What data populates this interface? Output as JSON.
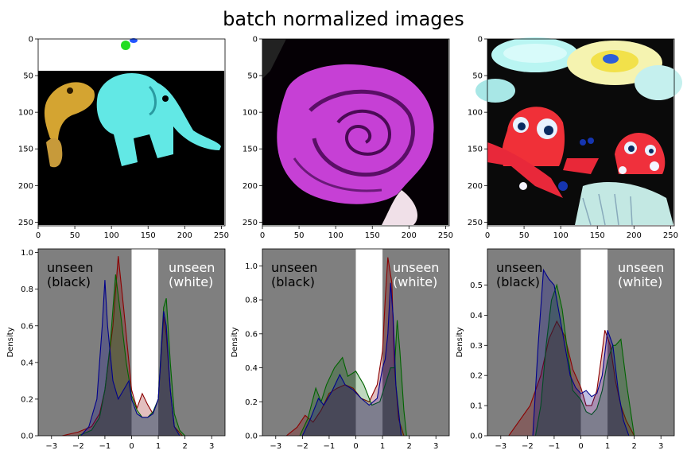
{
  "title": "batch normalized images",
  "chart_data": [
    {
      "type": "image",
      "subject": "blue-green plush elephant and yellow toy on black background",
      "xlim": [
        0,
        255
      ],
      "ylim": [
        255,
        0
      ],
      "xticks": [
        0,
        50,
        100,
        150,
        200,
        250
      ],
      "yticks": [
        0,
        50,
        100,
        150,
        200,
        250
      ]
    },
    {
      "type": "image",
      "subject": "magenta rose on black background",
      "xlim": [
        0,
        255
      ],
      "ylim": [
        255,
        0
      ],
      "xticks": [
        0,
        50,
        100,
        150,
        200,
        250
      ],
      "yticks": [
        0,
        50,
        100,
        150,
        200,
        250
      ]
    },
    {
      "type": "image",
      "subject": "red octopus toys in front of colourful spinning tops",
      "xlim": [
        0,
        255
      ],
      "ylim": [
        255,
        0
      ],
      "xticks": [
        0,
        50,
        100,
        150,
        200,
        250
      ],
      "yticks": [
        0,
        50,
        100,
        150,
        200,
        250
      ]
    },
    {
      "type": "area",
      "ylabel": "Density",
      "xlim": [
        -3.5,
        3.5
      ],
      "ylim": [
        0,
        1.02
      ],
      "xticks": [
        -3,
        -2,
        -1,
        0,
        1,
        2,
        3
      ],
      "yticks": [
        0.0,
        0.2,
        0.4,
        0.6,
        0.8,
        1.0
      ],
      "shaded_regions": [
        {
          "range": [
            -3.5,
            0
          ],
          "label": "unseen\n(black)",
          "color": "#7f7f7f"
        },
        {
          "range": [
            1,
            3.5
          ],
          "label": "unseen\n(white)",
          "color": "#7f7f7f"
        }
      ],
      "series": [
        {
          "color": "#8b0000",
          "x": [
            -2.6,
            -2.0,
            -1.5,
            -1.2,
            -1.0,
            -0.7,
            -0.5,
            -0.3,
            -0.1,
            0.0,
            0.2,
            0.4,
            0.6,
            0.8,
            1.0,
            1.2,
            1.3,
            1.45,
            1.6,
            1.9
          ],
          "y": [
            0.0,
            0.02,
            0.05,
            0.12,
            0.25,
            0.6,
            0.98,
            0.7,
            0.4,
            0.25,
            0.15,
            0.23,
            0.17,
            0.12,
            0.2,
            0.65,
            0.55,
            0.25,
            0.05,
            0.0
          ]
        },
        {
          "color": "#006400",
          "x": [
            -2.0,
            -1.5,
            -1.2,
            -1.0,
            -0.8,
            -0.6,
            -0.4,
            -0.2,
            0.0,
            0.2,
            0.4,
            0.6,
            0.8,
            1.0,
            1.2,
            1.3,
            1.45,
            1.6,
            1.8,
            2.0
          ],
          "y": [
            0.0,
            0.03,
            0.1,
            0.25,
            0.5,
            0.88,
            0.65,
            0.4,
            0.22,
            0.14,
            0.1,
            0.1,
            0.13,
            0.2,
            0.7,
            0.75,
            0.4,
            0.12,
            0.03,
            0.0
          ]
        },
        {
          "color": "#00008b",
          "x": [
            -1.9,
            -1.6,
            -1.3,
            -1.1,
            -1.0,
            -0.9,
            -0.7,
            -0.5,
            -0.3,
            -0.1,
            0.0,
            0.2,
            0.4,
            0.6,
            0.8,
            1.0,
            1.2,
            1.3,
            1.45,
            1.6,
            1.8
          ],
          "y": [
            0.0,
            0.05,
            0.2,
            0.6,
            0.85,
            0.6,
            0.3,
            0.2,
            0.25,
            0.3,
            0.2,
            0.12,
            0.1,
            0.1,
            0.12,
            0.2,
            0.68,
            0.6,
            0.25,
            0.05,
            0.0
          ]
        }
      ]
    },
    {
      "type": "area",
      "ylabel": "Density",
      "xlim": [
        -3.5,
        3.5
      ],
      "ylim": [
        0,
        1.1
      ],
      "xticks": [
        -3,
        -2,
        -1,
        0,
        1,
        2,
        3
      ],
      "yticks": [
        0.0,
        0.2,
        0.4,
        0.6,
        0.8,
        1.0
      ],
      "shaded_regions": [
        {
          "range": [
            -3.5,
            0
          ],
          "label": "unseen\n(black)",
          "color": "#7f7f7f"
        },
        {
          "range": [
            1,
            3.5
          ],
          "label": "unseen\n(white)",
          "color": "#7f7f7f"
        }
      ],
      "series": [
        {
          "color": "#8b0000",
          "x": [
            -2.6,
            -2.2,
            -1.9,
            -1.6,
            -1.3,
            -1.0,
            -0.7,
            -0.4,
            -0.1,
            0.2,
            0.5,
            0.8,
            1.0,
            1.1,
            1.2,
            1.35,
            1.45,
            1.6,
            1.8
          ],
          "y": [
            0.0,
            0.05,
            0.12,
            0.08,
            0.15,
            0.25,
            0.28,
            0.3,
            0.28,
            0.22,
            0.2,
            0.3,
            0.5,
            0.8,
            1.05,
            0.9,
            0.4,
            0.1,
            0.0
          ]
        },
        {
          "color": "#006400",
          "x": [
            -2.1,
            -1.8,
            -1.5,
            -1.3,
            -1.1,
            -0.8,
            -0.5,
            -0.3,
            0.0,
            0.3,
            0.6,
            0.9,
            1.1,
            1.3,
            1.45,
            1.55,
            1.65,
            1.8,
            1.9
          ],
          "y": [
            0.0,
            0.1,
            0.28,
            0.2,
            0.3,
            0.4,
            0.46,
            0.35,
            0.38,
            0.3,
            0.18,
            0.2,
            0.3,
            0.4,
            0.4,
            0.68,
            0.5,
            0.15,
            0.0
          ]
        },
        {
          "color": "#00008b",
          "x": [
            -2.0,
            -1.7,
            -1.4,
            -1.2,
            -0.9,
            -0.6,
            -0.4,
            -0.1,
            0.2,
            0.5,
            0.8,
            1.0,
            1.1,
            1.2,
            1.3,
            1.4,
            1.5,
            1.7
          ],
          "y": [
            0.0,
            0.1,
            0.22,
            0.18,
            0.26,
            0.36,
            0.3,
            0.27,
            0.22,
            0.18,
            0.22,
            0.4,
            0.45,
            0.6,
            0.9,
            0.7,
            0.3,
            0.0
          ]
        }
      ]
    },
    {
      "type": "area",
      "ylabel": "Density",
      "xlim": [
        -3.5,
        3.5
      ],
      "ylim": [
        0,
        0.62
      ],
      "xticks": [
        -3,
        -2,
        -1,
        0,
        1,
        2,
        3
      ],
      "yticks": [
        0.0,
        0.1,
        0.2,
        0.3,
        0.4,
        0.5
      ],
      "shaded_regions": [
        {
          "range": [
            -3.5,
            0
          ],
          "label": "unseen\n(black)",
          "color": "#7f7f7f"
        },
        {
          "range": [
            1,
            3.5
          ],
          "label": "unseen\n(white)",
          "color": "#7f7f7f"
        }
      ],
      "series": [
        {
          "color": "#8b0000",
          "x": [
            -2.7,
            -2.3,
            -1.9,
            -1.5,
            -1.2,
            -0.9,
            -0.6,
            -0.3,
            0.0,
            0.2,
            0.4,
            0.6,
            0.8,
            0.9,
            1.1,
            1.3,
            1.5,
            1.7,
            2.0
          ],
          "y": [
            0.0,
            0.05,
            0.1,
            0.2,
            0.32,
            0.38,
            0.33,
            0.22,
            0.16,
            0.1,
            0.1,
            0.15,
            0.28,
            0.35,
            0.3,
            0.18,
            0.1,
            0.05,
            0.0
          ]
        },
        {
          "color": "#006400",
          "x": [
            -1.7,
            -1.5,
            -1.3,
            -1.1,
            -0.9,
            -0.7,
            -0.5,
            -0.3,
            0.0,
            0.2,
            0.4,
            0.6,
            0.8,
            1.0,
            1.2,
            1.3,
            1.5,
            1.7,
            2.0
          ],
          "y": [
            0.0,
            0.1,
            0.3,
            0.45,
            0.5,
            0.42,
            0.28,
            0.15,
            0.12,
            0.08,
            0.07,
            0.09,
            0.15,
            0.25,
            0.3,
            0.3,
            0.32,
            0.18,
            0.0
          ]
        },
        {
          "color": "#00008b",
          "x": [
            -1.8,
            -1.6,
            -1.4,
            -1.2,
            -1.0,
            -0.8,
            -0.6,
            -0.4,
            -0.2,
            0.0,
            0.2,
            0.4,
            0.6,
            0.8,
            1.0,
            1.2,
            1.4,
            1.6,
            1.8
          ],
          "y": [
            0.0,
            0.3,
            0.55,
            0.52,
            0.5,
            0.4,
            0.3,
            0.2,
            0.16,
            0.14,
            0.15,
            0.13,
            0.14,
            0.2,
            0.35,
            0.3,
            0.15,
            0.05,
            0.0
          ]
        }
      ]
    }
  ]
}
